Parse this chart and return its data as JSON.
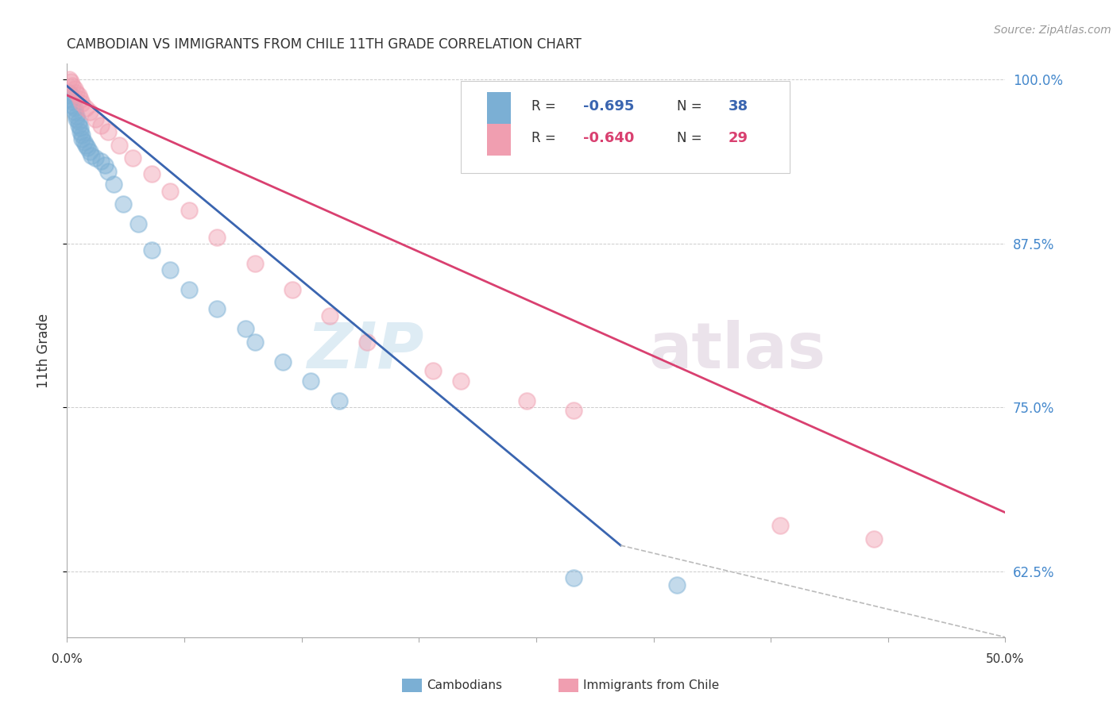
{
  "title": "CAMBODIAN VS IMMIGRANTS FROM CHILE 11TH GRADE CORRELATION CHART",
  "source": "Source: ZipAtlas.com",
  "ylabel": "11th Grade",
  "watermark_zip": "ZIP",
  "watermark_atlas": "atlas",
  "xlim": [
    0.0,
    0.5
  ],
  "ylim": [
    0.575,
    1.012
  ],
  "yticks": [
    0.625,
    0.75,
    0.875,
    1.0
  ],
  "ytick_labels": [
    "62.5%",
    "75.0%",
    "87.5%",
    "100.0%"
  ],
  "xtick_left_label": "0.0%",
  "xtick_right_label": "50.0%",
  "blue_color": "#7BAFD4",
  "pink_color": "#F09EB0",
  "blue_line_color": "#3A65B0",
  "pink_line_color": "#D94070",
  "right_tick_color": "#4488CC",
  "grid_color": "#CCCCCC",
  "background_color": "#FFFFFF",
  "title_color": "#333333",
  "source_color": "#999999",
  "blue_scatter_x": [
    0.001,
    0.002,
    0.002,
    0.003,
    0.003,
    0.004,
    0.004,
    0.005,
    0.005,
    0.006,
    0.006,
    0.007,
    0.007,
    0.008,
    0.008,
    0.009,
    0.01,
    0.011,
    0.012,
    0.013,
    0.015,
    0.018,
    0.02,
    0.022,
    0.025,
    0.03,
    0.038,
    0.045,
    0.055,
    0.065,
    0.08,
    0.095,
    0.1,
    0.115,
    0.13,
    0.145,
    0.27,
    0.325
  ],
  "blue_scatter_y": [
    0.99,
    0.988,
    0.985,
    0.983,
    0.98,
    0.978,
    0.975,
    0.972,
    0.97,
    0.968,
    0.965,
    0.963,
    0.96,
    0.958,
    0.955,
    0.952,
    0.95,
    0.948,
    0.945,
    0.942,
    0.94,
    0.938,
    0.935,
    0.93,
    0.92,
    0.905,
    0.89,
    0.87,
    0.855,
    0.84,
    0.825,
    0.81,
    0.8,
    0.785,
    0.77,
    0.755,
    0.62,
    0.615
  ],
  "pink_scatter_x": [
    0.001,
    0.002,
    0.003,
    0.004,
    0.005,
    0.006,
    0.007,
    0.008,
    0.01,
    0.012,
    0.015,
    0.018,
    0.022,
    0.028,
    0.035,
    0.045,
    0.055,
    0.065,
    0.08,
    0.1,
    0.12,
    0.14,
    0.16,
    0.195,
    0.21,
    0.245,
    0.27,
    0.38,
    0.43
  ],
  "pink_scatter_y": [
    1.0,
    0.998,
    0.995,
    0.993,
    0.99,
    0.988,
    0.985,
    0.982,
    0.978,
    0.975,
    0.97,
    0.965,
    0.96,
    0.95,
    0.94,
    0.928,
    0.915,
    0.9,
    0.88,
    0.86,
    0.84,
    0.82,
    0.8,
    0.778,
    0.77,
    0.755,
    0.748,
    0.66,
    0.65
  ],
  "blue_line_x": [
    0.0,
    0.295
  ],
  "blue_line_y": [
    0.995,
    0.645
  ],
  "pink_line_x": [
    0.0,
    0.5
  ],
  "pink_line_y": [
    0.988,
    0.67
  ],
  "dashed_line_x": [
    0.295,
    0.5
  ],
  "dashed_line_y": [
    0.645,
    0.575
  ],
  "legend_blue_text": "R = -0.695   N = 38",
  "legend_pink_text": "R = -0.640   N = 29",
  "bottom_legend_cambodians": "Cambodians",
  "bottom_legend_chile": "Immigrants from Chile"
}
